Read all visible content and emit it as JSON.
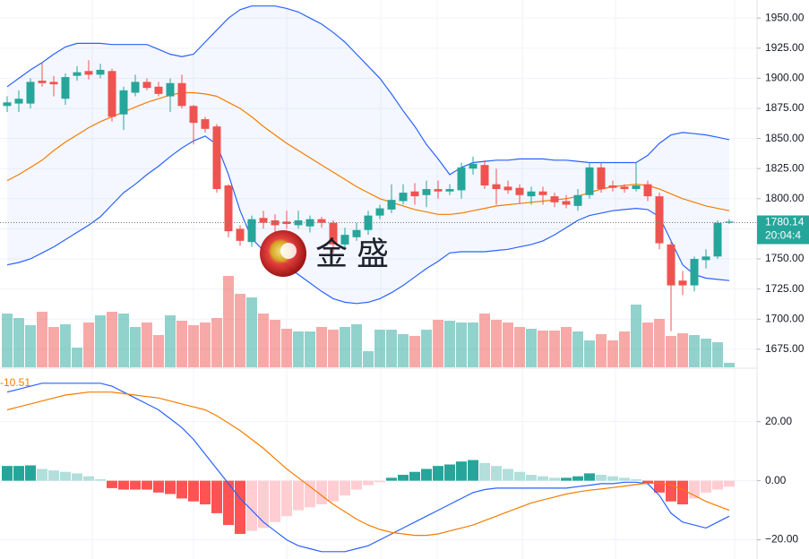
{
  "chart_data": [
    {
      "type": "candlestick",
      "open": [
        1877,
        1879,
        1879,
        1898,
        1897,
        1883,
        1902,
        1906,
        1903,
        1906,
        1870,
        1888,
        1897,
        1893,
        1885,
        1896,
        1877,
        1866,
        1860,
        1811,
        1775,
        1764,
        1784,
        1782,
        1781,
        1778,
        1777,
        1783,
        1780,
        1762,
        1768,
        1774,
        1786,
        1791,
        1798,
        1806,
        1803,
        1808,
        1806,
        1807,
        1825,
        1828,
        1812,
        1810,
        1809,
        1802,
        1806,
        1802,
        1798,
        1794,
        1803,
        1826,
        1811,
        1810,
        1808,
        1812,
        1802,
        1762,
        1732,
        1728,
        1749,
        1752,
        1780
      ],
      "high": [
        1885,
        1890,
        1900,
        1913,
        1902,
        1904,
        1910,
        1915,
        1912,
        1908,
        1893,
        1903,
        1900,
        1897,
        1900,
        1903,
        1878,
        1868,
        1862,
        1812,
        1778,
        1786,
        1790,
        1787,
        1790,
        1790,
        1786,
        1785,
        1782,
        1776,
        1780,
        1790,
        1795,
        1812,
        1812,
        1813,
        1815,
        1815,
        1812,
        1830,
        1835,
        1832,
        1825,
        1815,
        1812,
        1810,
        1810,
        1805,
        1803,
        1808,
        1830,
        1830,
        1815,
        1812,
        1830,
        1815,
        1805,
        1765,
        1740,
        1752,
        1758,
        1782,
        1783
      ],
      "low": [
        1872,
        1872,
        1875,
        1893,
        1885,
        1878,
        1898,
        1899,
        1900,
        1864,
        1857,
        1885,
        1890,
        1885,
        1872,
        1875,
        1845,
        1855,
        1805,
        1768,
        1761,
        1760,
        1775,
        1772,
        1775,
        1775,
        1772,
        1776,
        1755,
        1758,
        1765,
        1770,
        1783,
        1788,
        1795,
        1795,
        1793,
        1800,
        1803,
        1800,
        1820,
        1808,
        1795,
        1804,
        1796,
        1795,
        1795,
        1793,
        1792,
        1790,
        1800,
        1805,
        1806,
        1805,
        1806,
        1798,
        1758,
        1690,
        1720,
        1723,
        1742,
        1750,
        1779
      ],
      "close": [
        1880,
        1883,
        1897,
        1896,
        1895,
        1901,
        1905,
        1903,
        1907,
        1868,
        1890,
        1897,
        1892,
        1887,
        1896,
        1877,
        1863,
        1858,
        1808,
        1773,
        1765,
        1783,
        1780,
        1778,
        1779,
        1782,
        1783,
        1780,
        1762,
        1770,
        1774,
        1786,
        1792,
        1799,
        1805,
        1802,
        1808,
        1806,
        1808,
        1826,
        1829,
        1811,
        1808,
        1807,
        1803,
        1806,
        1803,
        1797,
        1795,
        1803,
        1826,
        1808,
        1809,
        1808,
        1811,
        1802,
        1763,
        1728,
        1728,
        1750,
        1752,
        1780,
        1781
      ],
      "volume": [
        60,
        55,
        47,
        62,
        45,
        48,
        22,
        50,
        58,
        62,
        60,
        45,
        50,
        36,
        58,
        52,
        47,
        50,
        55,
        102,
        82,
        78,
        60,
        53,
        43,
        40,
        40,
        45,
        42,
        45,
        48,
        18,
        42,
        42,
        37,
        35,
        42,
        53,
        52,
        50,
        50,
        60,
        53,
        50,
        45,
        43,
        41,
        41,
        45,
        40,
        30,
        37,
        30,
        40,
        70,
        50,
        54,
        35,
        38,
        36,
        32,
        28,
        5
      ],
      "bb_upper": [
        1893,
        1900,
        1907,
        1913,
        1920,
        1926,
        1929,
        1929,
        1929,
        1928,
        1928,
        1928,
        1928,
        1924,
        1920,
        1918,
        1920,
        1930,
        1940,
        1950,
        1957,
        1960,
        1960,
        1960,
        1958,
        1955,
        1950,
        1945,
        1938,
        1930,
        1920,
        1910,
        1900,
        1887,
        1873,
        1860,
        1845,
        1833,
        1820,
        1826,
        1830,
        1831,
        1832,
        1832,
        1833,
        1833,
        1833,
        1832,
        1832,
        1831,
        1830,
        1830,
        1830,
        1830,
        1830,
        1836,
        1846,
        1853,
        1855,
        1854,
        1853,
        1851,
        1849
      ],
      "bb_middle": [
        1815,
        1820,
        1826,
        1832,
        1840,
        1847,
        1853,
        1859,
        1864,
        1868,
        1872,
        1876,
        1880,
        1883,
        1886,
        1888,
        1888,
        1887,
        1885,
        1880,
        1875,
        1868,
        1860,
        1853,
        1846,
        1840,
        1834,
        1828,
        1822,
        1816,
        1810,
        1805,
        1800,
        1797,
        1794,
        1791,
        1789,
        1787,
        1787,
        1788,
        1790,
        1792,
        1794,
        1795,
        1796,
        1797,
        1798,
        1799,
        1800,
        1802,
        1805,
        1808,
        1810,
        1811,
        1812,
        1811,
        1808,
        1804,
        1800,
        1797,
        1794,
        1792,
        1790
      ],
      "bb_lower": [
        1745,
        1747,
        1750,
        1755,
        1760,
        1766,
        1772,
        1778,
        1785,
        1795,
        1805,
        1812,
        1820,
        1827,
        1835,
        1842,
        1848,
        1852,
        1845,
        1820,
        1790,
        1767,
        1757,
        1750,
        1744,
        1737,
        1730,
        1723,
        1717,
        1714,
        1713,
        1714,
        1717,
        1722,
        1728,
        1735,
        1742,
        1748,
        1755,
        1756,
        1756,
        1756,
        1757,
        1758,
        1760,
        1762,
        1765,
        1770,
        1776,
        1782,
        1786,
        1788,
        1790,
        1791,
        1792,
        1791,
        1785,
        1765,
        1745,
        1737,
        1734,
        1733,
        1732
      ],
      "up_color": "#26a69a",
      "down_color": "#ef5350",
      "band_color": "#2962ff",
      "middle_color": "#f57c00",
      "ylim": [
        1660,
        1965
      ],
      "volume_ylim": [
        0,
        410
      ],
      "yticks": [
        {
          "value": 1950,
          "label": "1950.00"
        },
        {
          "value": 1925,
          "label": "1925.00"
        },
        {
          "value": 1900,
          "label": "1900.00"
        },
        {
          "value": 1875,
          "label": "1875.00"
        },
        {
          "value": 1850,
          "label": "1850.00"
        },
        {
          "value": 1825,
          "label": "1825.00"
        },
        {
          "value": 1800,
          "label": "1800.00"
        },
        {
          "value": 1775,
          "label": "1775.00"
        },
        {
          "value": 1750,
          "label": "1750.00"
        },
        {
          "value": 1725,
          "label": "1725.00"
        },
        {
          "value": 1700,
          "label": "1700.00"
        },
        {
          "value": 1675,
          "label": "1675.00"
        }
      ],
      "last_price": 1780.14,
      "last_time": "20:04:4",
      "watermark": "金 盛",
      "grid": true
    },
    {
      "type": "macd",
      "macd": [
        30,
        31,
        32,
        33,
        33,
        33,
        33,
        33,
        33,
        32,
        30,
        28,
        26,
        24,
        21,
        18,
        14,
        9,
        4,
        -1,
        -6,
        -10,
        -14,
        -17,
        -20,
        -22,
        -23,
        -24,
        -24,
        -24,
        -23,
        -22,
        -20,
        -18,
        -16,
        -14,
        -12,
        -10,
        -8,
        -6,
        -4,
        -3,
        -2.5,
        -2.5,
        -2.5,
        -2.5,
        -2.5,
        -2.5,
        -2.5,
        -2,
        -1.5,
        -1,
        -1,
        -0.5,
        -0.5,
        -1,
        -5,
        -11,
        -14,
        -15,
        -16,
        -14,
        -12
      ],
      "signal": [
        24,
        25,
        26,
        27,
        28,
        29,
        29.5,
        30,
        30,
        30,
        29.5,
        29,
        28.5,
        28,
        27,
        26,
        25,
        24,
        22,
        19.5,
        17,
        14,
        11,
        7.5,
        4,
        1,
        -2,
        -5,
        -8,
        -10.5,
        -13,
        -15,
        -16.5,
        -17.5,
        -18,
        -18.5,
        -18.5,
        -18,
        -17,
        -16,
        -15,
        -13.5,
        -12,
        -10.5,
        -9,
        -7.5,
        -6.5,
        -5.5,
        -4.5,
        -3.8,
        -3.2,
        -2.8,
        -2.3,
        -1.8,
        -1.3,
        -0.8,
        -0.8,
        -1.5,
        -3,
        -5,
        -7,
        -8.5,
        -10
      ],
      "histogram": [
        5,
        5,
        5.2,
        4,
        3.5,
        3,
        2.5,
        1.5,
        0.5,
        -2.5,
        -3,
        -3,
        -3,
        -4,
        -4.5,
        -6,
        -7,
        -8,
        -11,
        -15,
        -18,
        -17,
        -16,
        -14,
        -12,
        -10,
        -9,
        -8,
        -7,
        -5,
        -3,
        -1.5,
        -0.5,
        1,
        2,
        3,
        4,
        5,
        5.5,
        6.5,
        7,
        6,
        5,
        4,
        3,
        2,
        1.5,
        1,
        1,
        1.5,
        2.5,
        2,
        1.5,
        1,
        0.5,
        -1,
        -4,
        -7,
        -8,
        -6,
        -4,
        -3,
        -2
      ],
      "signal_last": -10.51,
      "macd_color": "#2962ff",
      "signal_color": "#f57c00",
      "hist_colors": {
        "up_rising": "#26a69a",
        "up_falling": "#b2dfdb",
        "down_falling": "#ff5252",
        "down_rising": "#ffcdd2"
      },
      "ylim": [
        -26.5,
        37.8
      ],
      "yticks": [
        {
          "value": 20,
          "label": "20.00"
        },
        {
          "value": 0,
          "label": "0.00"
        },
        {
          "value": -20,
          "label": "−20.00"
        }
      ],
      "grid": true
    }
  ]
}
